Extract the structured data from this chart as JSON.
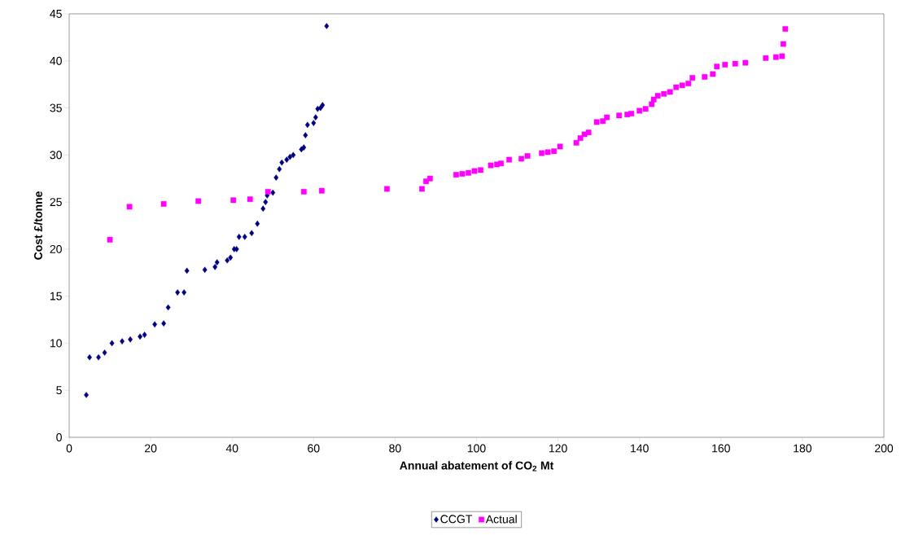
{
  "chart_data": {
    "type": "scatter",
    "xlabel": "Annual abatement of CO$_{2}$ Mt",
    "ylabel": "Cost £/tonne",
    "xlim": [
      0,
      200
    ],
    "xticks": [
      0,
      20,
      40,
      60,
      80,
      100,
      120,
      140,
      160,
      180,
      200
    ],
    "ylim": [
      0,
      45
    ],
    "yticks": [
      0,
      5,
      10,
      15,
      20,
      25,
      30,
      35,
      40,
      45
    ],
    "grid": false,
    "legend": "bottom",
    "series": [
      {
        "name": "CCGT",
        "color": "#000080",
        "marker": "diamond",
        "x": [
          4.2,
          5,
          7.2,
          8.7,
          10.5,
          13,
          15,
          17.4,
          18.5,
          21,
          23.2,
          24.3,
          26.6,
          28.2,
          28.9,
          33.3,
          35.8,
          36.3,
          38.8,
          39.6,
          40.5,
          41.1,
          41.7,
          43.1,
          44.8,
          46.2,
          47.6,
          48.2,
          48.6,
          50,
          50.8,
          51.6,
          52.2,
          53.4,
          54.2,
          55,
          57,
          57.6,
          58,
          58.5,
          60,
          60.5,
          61,
          61.7,
          62.2,
          63.2
        ],
        "values": [
          4.5,
          8.5,
          8.5,
          9,
          10,
          10.2,
          10.4,
          10.7,
          10.9,
          12,
          12.1,
          13.8,
          15.4,
          15.4,
          17.7,
          17.8,
          18.1,
          18.6,
          18.8,
          19.1,
          20,
          20,
          21.3,
          21.3,
          21.7,
          22.7,
          24.3,
          25,
          25.7,
          26,
          27.6,
          28.5,
          29.2,
          29.5,
          29.8,
          30,
          30.6,
          30.8,
          32.1,
          33.2,
          33.4,
          34,
          34.9,
          35,
          35.3,
          43.7
        ]
      },
      {
        "name": "Actual",
        "color": "#ff00ff",
        "marker": "square",
        "x": [
          10,
          14.8,
          23.2,
          31.7,
          40.3,
          44.4,
          48.8,
          57.6,
          62,
          78,
          86.6,
          87.6,
          88.6,
          95,
          96.5,
          98,
          99.5,
          101,
          103.5,
          105,
          106,
          108,
          111,
          112.5,
          116,
          117.5,
          119,
          120.5,
          124.5,
          125.5,
          126.5,
          127.5,
          129.5,
          131,
          132,
          135,
          137,
          138,
          140,
          141.5,
          143,
          143.5,
          144.5,
          146,
          147.5,
          149,
          150.5,
          152,
          153,
          156,
          158,
          159,
          161,
          163.5,
          166,
          171,
          173.5,
          175,
          175.3,
          175.8
        ],
        "values": [
          21,
          24.5,
          24.8,
          25.1,
          25.2,
          25.3,
          26.1,
          26.1,
          26.2,
          26.4,
          26.4,
          27.2,
          27.5,
          27.9,
          28,
          28.1,
          28.3,
          28.4,
          28.9,
          29,
          29.1,
          29.5,
          29.6,
          29.9,
          30.2,
          30.3,
          30.4,
          30.9,
          31.3,
          31.8,
          32.2,
          32.4,
          33.5,
          33.6,
          34,
          34.2,
          34.3,
          34.4,
          34.7,
          34.9,
          35.4,
          35.9,
          36.3,
          36.5,
          36.7,
          37.2,
          37.4,
          37.6,
          38.2,
          38.3,
          38.6,
          39.4,
          39.6,
          39.7,
          39.8,
          40.3,
          40.4,
          40.5,
          41.8,
          43.4
        ]
      }
    ]
  }
}
